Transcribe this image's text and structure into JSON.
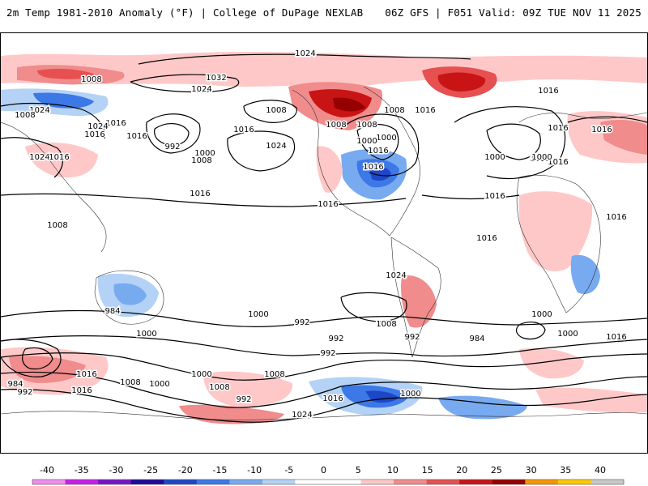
{
  "header": {
    "title_left": "2m Temp 1981-2010 Anomaly (°F) | College of DuPage NEXLAB",
    "title_right": "06Z GFS | F051 Valid: 09Z TUE NOV 11 2025"
  },
  "map": {
    "projection": "equirectangular global",
    "isobar_labels": [
      "1024",
      "1008",
      "1032",
      "1024",
      "1024",
      "1008",
      "1024",
      "1008",
      "1016",
      "1016",
      "1016",
      "1000",
      "992",
      "1000",
      "1008",
      "1024",
      "1016",
      "1024",
      "1016",
      "1008",
      "1016",
      "1008",
      "1008",
      "1016",
      "1000",
      "1016",
      "1016",
      "1016",
      "1016",
      "1008",
      "1016",
      "1016",
      "1016",
      "1016",
      "1016",
      "1024",
      "1016",
      "1008",
      "1000",
      "1000",
      "1000",
      "992",
      "1008",
      "992",
      "1000",
      "1000",
      "984",
      "992",
      "984",
      "1000",
      "1016",
      "992",
      "1008",
      "1000",
      "992",
      "984",
      "992",
      "1016",
      "1008",
      "1000",
      "1016",
      "1008",
      "992",
      "1024",
      "1016",
      "1000"
    ]
  },
  "colorbar": {
    "ticks": [
      "-40",
      "-35",
      "-30",
      "-25",
      "-20",
      "-15",
      "-10",
      "-5",
      "0",
      "5",
      "10",
      "15",
      "20",
      "25",
      "30",
      "35",
      "40"
    ],
    "colors": [
      "#f08cf0",
      "#c81ee8",
      "#7814c8",
      "#1e0a96",
      "#1e46c8",
      "#3c78e6",
      "#78aaf0",
      "#b4d2f5",
      "#ffffff",
      "#ffffff",
      "#ffc8c8",
      "#f08c8c",
      "#e65050",
      "#c81414",
      "#960000",
      "#f59600",
      "#ffc800",
      "#c8c8c8"
    ]
  }
}
